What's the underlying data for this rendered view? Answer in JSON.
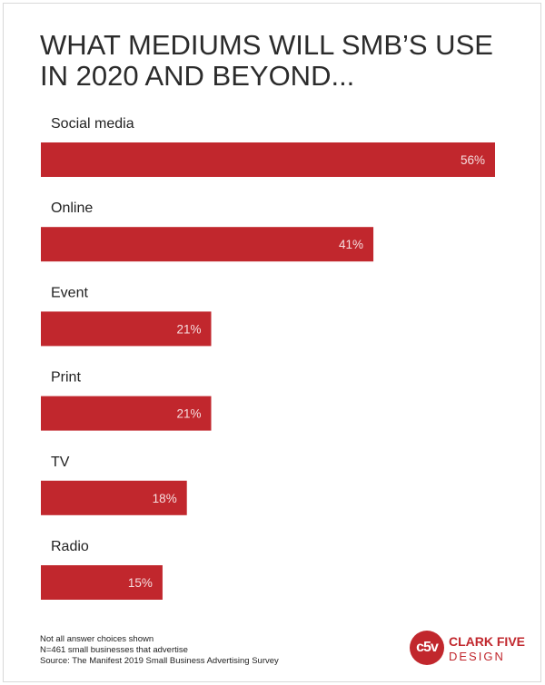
{
  "chart_data": {
    "type": "bar",
    "orientation": "horizontal",
    "title_lines": [
      "WHAT MEDIUMS WILL SMB’S USE",
      "IN 2020 AND BEYOND..."
    ],
    "categories": [
      "Social media",
      "Online",
      "Event",
      "Print",
      "TV",
      "Radio"
    ],
    "values": [
      56,
      41,
      21,
      21,
      18,
      15
    ],
    "value_labels": [
      "56%",
      "41%",
      "21%",
      "21%",
      "18%",
      "15%"
    ],
    "xlim": [
      0,
      56
    ],
    "bar_color": "#c1272d",
    "grid": false,
    "legend": "none"
  },
  "notes": [
    "Not all answer choices shown",
    "N=461 small businesses that advertise",
    "Source: The Manifest 2019 Small Business Advertising Survey"
  ],
  "logo": {
    "mark_text": "c5v",
    "line1": "CLARK FIVE",
    "line2": "DESIGN",
    "color": "#c1272d"
  }
}
